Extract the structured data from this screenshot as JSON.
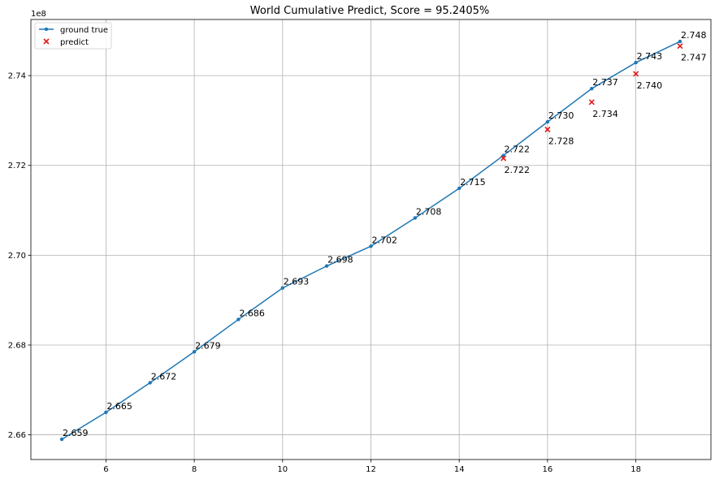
{
  "chart_data": {
    "type": "line",
    "title": "World Cumulative Predict, Score = 95.2405%",
    "xlabel": "",
    "ylabel": "",
    "y_offset_label": "1e8",
    "xlim": [
      4.3,
      19.7
    ],
    "ylim": [
      2.6545,
      2.7525
    ],
    "x_ticks": [
      6,
      8,
      10,
      12,
      14,
      16,
      18
    ],
    "y_ticks": [
      2.66,
      2.68,
      2.7,
      2.72,
      2.74
    ],
    "grid": true,
    "legend_position": "top-left",
    "series": [
      {
        "name": "ground true",
        "kind": "line-marker",
        "color": "#1f77b4",
        "x": [
          5,
          6,
          7,
          8,
          9,
          10,
          11,
          12,
          13,
          14,
          15,
          16,
          17,
          18,
          19
        ],
        "y": [
          2.659,
          2.665,
          2.6716,
          2.6785,
          2.6857,
          2.6927,
          2.6976,
          2.702,
          2.7083,
          2.7149,
          2.7222,
          2.7297,
          2.7371,
          2.7429,
          2.7476
        ],
        "labels": [
          "2.659",
          "2.665",
          "2.672",
          "2.679",
          "2.686",
          "2.693",
          "2.698",
          "2.702",
          "2.708",
          "2.715",
          "2.722",
          "2.730",
          "2.737",
          "2.743",
          "2.748"
        ]
      },
      {
        "name": "predict",
        "kind": "scatter-x",
        "color": "#e31a1c",
        "x": [
          15,
          16,
          17,
          18,
          19
        ],
        "y": [
          2.7216,
          2.728,
          2.7341,
          2.7404,
          2.7466
        ],
        "labels": [
          "2.722",
          "2.728",
          "2.734",
          "2.740",
          "2.747"
        ]
      }
    ]
  }
}
